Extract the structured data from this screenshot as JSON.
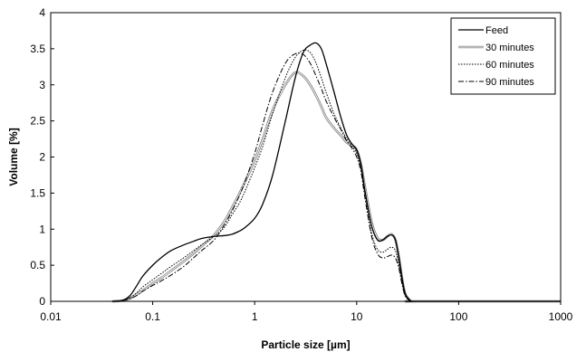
{
  "chart_data": {
    "type": "line",
    "title": "",
    "xlabel": "Particle size [µm]",
    "ylabel": "Volume [%]",
    "xscale": "log",
    "xlim": [
      0.01,
      1000
    ],
    "ylim": [
      0,
      4
    ],
    "xticks": [
      0.01,
      0.1,
      1,
      10,
      100,
      1000
    ],
    "xtick_labels": [
      "0.01",
      "0.1",
      "1",
      "10",
      "100",
      "1000"
    ],
    "yticks": [
      0,
      0.5,
      1,
      1.5,
      2,
      2.5,
      3,
      3.5,
      4
    ],
    "ytick_labels": [
      "0",
      "0.5",
      "1",
      "1.5",
      "2",
      "2.5",
      "3",
      "3.5",
      "4"
    ],
    "grid": false,
    "legend": "top-right",
    "series": [
      {
        "name": "Feed",
        "style": "solid",
        "color": "#000000",
        "x": [
          0.04,
          0.05,
          0.06,
          0.07,
          0.08,
          0.1,
          0.12,
          0.15,
          0.2,
          0.25,
          0.3,
          0.4,
          0.5,
          0.6,
          0.7,
          0.8,
          1.0,
          1.2,
          1.5,
          2.0,
          2.5,
          3.0,
          3.5,
          4.0,
          4.5,
          5.0,
          6.0,
          7.0,
          8.0,
          9.0,
          10.0,
          11.0,
          12.0,
          14.0,
          16.0,
          18.0,
          20.0,
          22.0,
          24.0,
          26.0,
          28.0,
          30.0,
          33.0,
          35.0,
          40.0,
          1000
        ],
        "y": [
          0.0,
          0.01,
          0.08,
          0.22,
          0.35,
          0.5,
          0.6,
          0.7,
          0.78,
          0.83,
          0.87,
          0.9,
          0.91,
          0.93,
          0.97,
          1.02,
          1.15,
          1.35,
          1.75,
          2.5,
          3.1,
          3.45,
          3.55,
          3.58,
          3.5,
          3.3,
          2.9,
          2.55,
          2.3,
          2.18,
          2.1,
          1.9,
          1.55,
          1.05,
          0.85,
          0.85,
          0.9,
          0.92,
          0.85,
          0.6,
          0.3,
          0.1,
          0.02,
          0.0,
          0.0,
          0.0
        ]
      },
      {
        "name": "30 minutes",
        "style": "double",
        "color": "#888888",
        "x": [
          0.04,
          0.05,
          0.06,
          0.07,
          0.08,
          0.1,
          0.12,
          0.15,
          0.2,
          0.25,
          0.3,
          0.4,
          0.5,
          0.6,
          0.7,
          0.8,
          1.0,
          1.2,
          1.5,
          2.0,
          2.5,
          3.0,
          3.5,
          4.0,
          4.5,
          5.0,
          6.0,
          7.0,
          8.0,
          9.0,
          10.0,
          11.0,
          12.0,
          14.0,
          16.0,
          18.0,
          20.0,
          22.0,
          24.0,
          26.0,
          28.0,
          30.0,
          33.0,
          35.0,
          40.0,
          1000
        ],
        "y": [
          0.0,
          0.01,
          0.04,
          0.1,
          0.15,
          0.25,
          0.32,
          0.42,
          0.55,
          0.66,
          0.76,
          0.92,
          1.1,
          1.3,
          1.48,
          1.65,
          1.95,
          2.25,
          2.65,
          3.0,
          3.17,
          3.12,
          3.0,
          2.85,
          2.7,
          2.55,
          2.4,
          2.3,
          2.2,
          2.16,
          2.1,
          1.9,
          1.6,
          1.1,
          0.88,
          0.85,
          0.9,
          0.93,
          0.85,
          0.6,
          0.3,
          0.1,
          0.02,
          0.0,
          0.0,
          0.0
        ]
      },
      {
        "name": "60 minutes",
        "style": "dotted",
        "color": "#000000",
        "x": [
          0.04,
          0.05,
          0.06,
          0.07,
          0.08,
          0.1,
          0.12,
          0.15,
          0.2,
          0.25,
          0.3,
          0.4,
          0.5,
          0.6,
          0.7,
          0.8,
          1.0,
          1.2,
          1.5,
          2.0,
          2.5,
          3.0,
          3.5,
          4.0,
          4.5,
          5.0,
          6.0,
          7.0,
          8.0,
          9.0,
          10.0,
          11.0,
          12.0,
          14.0,
          16.0,
          18.0,
          20.0,
          22.0,
          24.0,
          26.0,
          28.0,
          30.0,
          33.0,
          35.0,
          40.0,
          1000
        ],
        "y": [
          0.0,
          0.01,
          0.05,
          0.12,
          0.2,
          0.3,
          0.38,
          0.48,
          0.6,
          0.7,
          0.78,
          0.9,
          1.02,
          1.2,
          1.35,
          1.52,
          1.85,
          2.15,
          2.6,
          3.1,
          3.38,
          3.48,
          3.45,
          3.3,
          3.1,
          2.9,
          2.6,
          2.4,
          2.25,
          2.15,
          2.05,
          1.85,
          1.5,
          0.95,
          0.72,
          0.68,
          0.72,
          0.75,
          0.7,
          0.5,
          0.25,
          0.08,
          0.02,
          0.0,
          0.0,
          0.0
        ]
      },
      {
        "name": "90 minutes",
        "style": "dashdot",
        "color": "#000000",
        "x": [
          0.04,
          0.05,
          0.06,
          0.07,
          0.08,
          0.1,
          0.12,
          0.15,
          0.2,
          0.25,
          0.3,
          0.4,
          0.5,
          0.6,
          0.7,
          0.8,
          1.0,
          1.2,
          1.5,
          2.0,
          2.5,
          3.0,
          3.5,
          4.0,
          4.5,
          5.0,
          6.0,
          7.0,
          8.0,
          9.0,
          10.0,
          11.0,
          12.0,
          14.0,
          16.0,
          18.0,
          20.0,
          22.0,
          24.0,
          26.0,
          28.0,
          30.0,
          33.0,
          35.0,
          40.0,
          1000
        ],
        "y": [
          0.0,
          0.01,
          0.04,
          0.08,
          0.14,
          0.22,
          0.28,
          0.36,
          0.48,
          0.6,
          0.7,
          0.85,
          1.05,
          1.25,
          1.45,
          1.65,
          2.05,
          2.45,
          2.9,
          3.3,
          3.43,
          3.42,
          3.3,
          3.12,
          2.95,
          2.78,
          2.55,
          2.38,
          2.22,
          2.12,
          2.0,
          1.8,
          1.45,
          0.9,
          0.66,
          0.6,
          0.62,
          0.64,
          0.6,
          0.45,
          0.22,
          0.07,
          0.01,
          0.0,
          0.0,
          0.0
        ]
      }
    ]
  }
}
